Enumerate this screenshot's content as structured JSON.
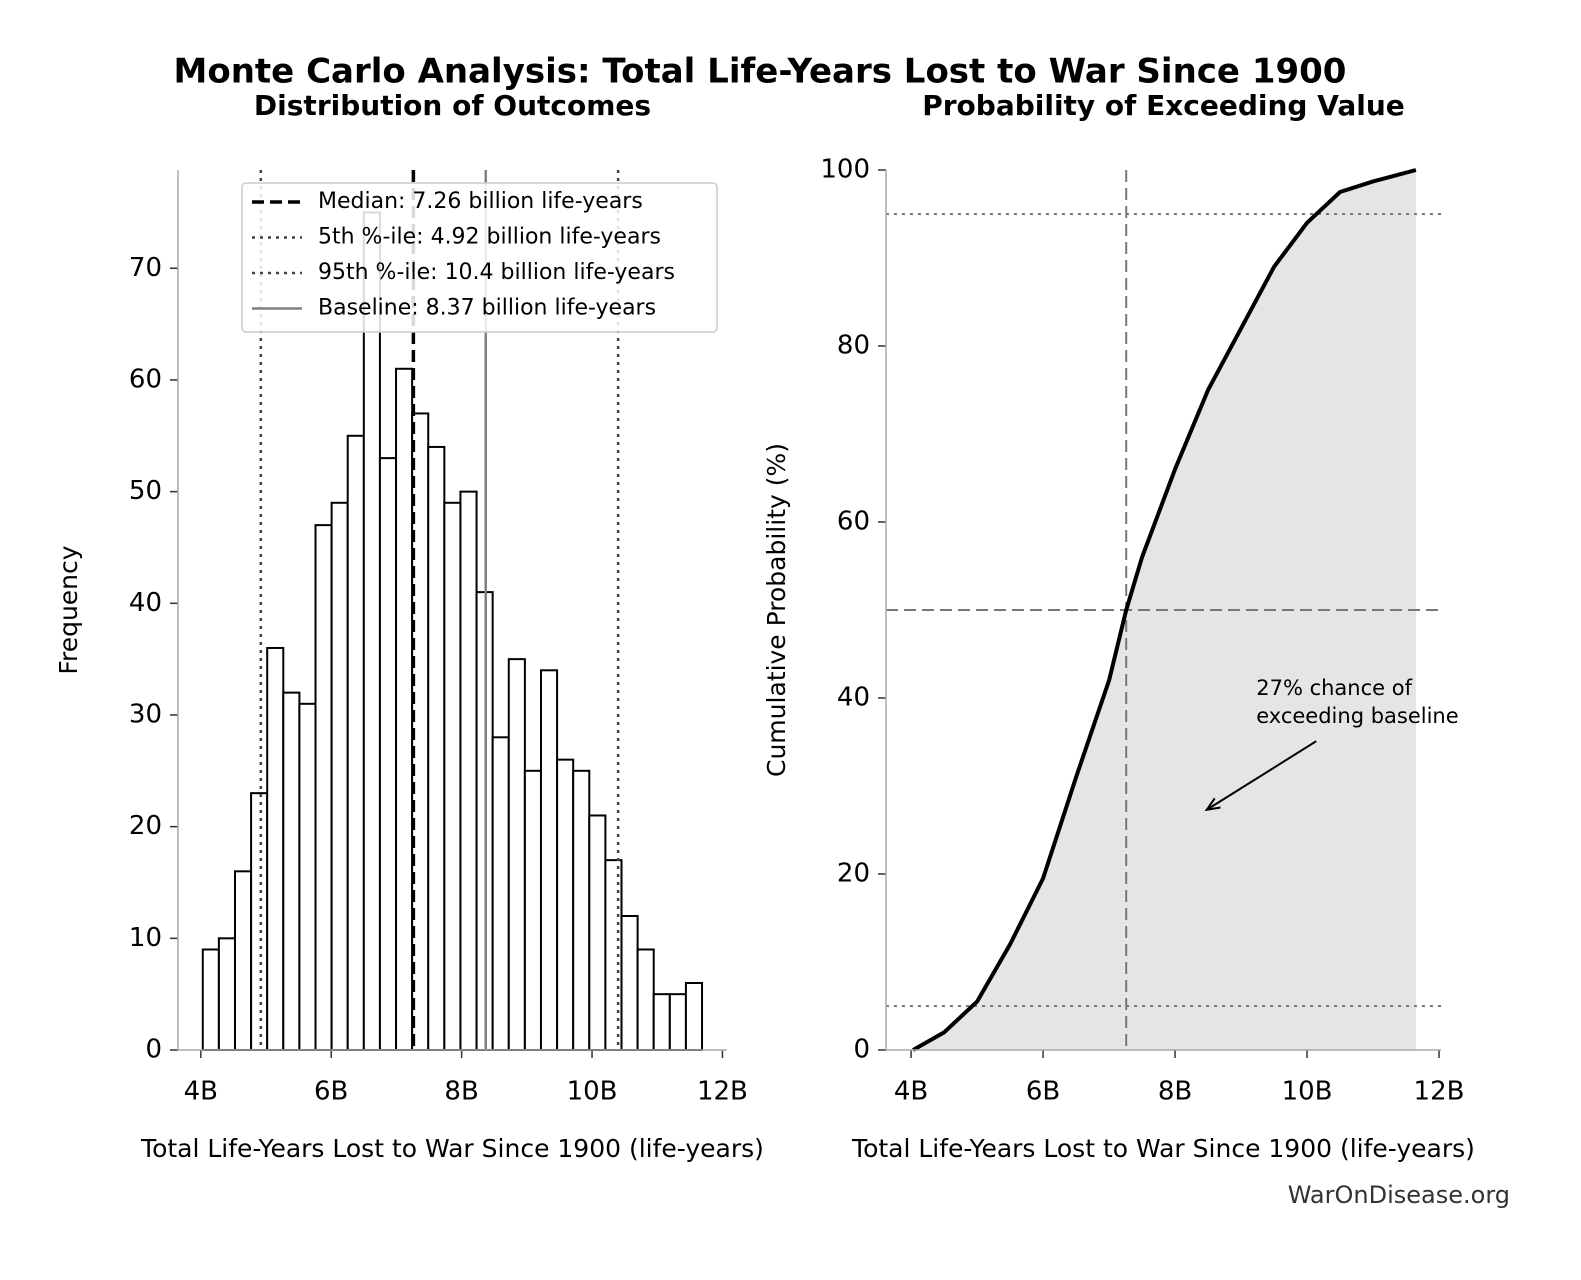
{
  "title": "Monte Carlo Analysis: Total Life-Years Lost to War Since 1900",
  "footer": "WarOnDisease.org",
  "chart_data": [
    {
      "type": "histogram",
      "title": "Distribution of Outcomes",
      "xlabel": "Total Life-Years Lost to War Since 1900 (life-years)",
      "ylabel": "Frequency",
      "bins": [
        4030000000.0,
        4277000000.0,
        4524000000.0,
        4771000000.0,
        5018000000.0,
        5265000000.0,
        5512000000.0,
        5759000000.0,
        6006000000.0,
        6253000000.0,
        6500000000.0,
        6747000000.0,
        6994000000.0,
        7241000000.0,
        7488000000.0,
        7735000000.0,
        7982000000.0,
        8229000000.0,
        8476000000.0,
        8723000000.0,
        8970000000.0,
        9217000000.0,
        9464000000.0,
        9711000000.0,
        9958000000.0,
        10205000000.0,
        10452000000.0,
        10699000000.0,
        10946000000.0,
        11193000000.0,
        11440000000.0,
        11687000000.0
      ],
      "counts": [
        9,
        10,
        16,
        23,
        36,
        32,
        31,
        47,
        49,
        55,
        75,
        53,
        61,
        57,
        54,
        49,
        50,
        41,
        28,
        35,
        25,
        34,
        26,
        25,
        21,
        17,
        12,
        9,
        5,
        5,
        6
      ],
      "color": "#ffffff",
      "edgecolor": "#000000",
      "xlim": [
        3650000000.0,
        12070000000.0
      ],
      "ylim": [
        0,
        78.8
      ],
      "xticks": [
        {
          "value": 4000000000.0,
          "label": "4B"
        },
        {
          "value": 6000000000.0,
          "label": "6B"
        },
        {
          "value": 8000000000.0,
          "label": "8B"
        },
        {
          "value": 10000000000.0,
          "label": "10B"
        },
        {
          "value": 12000000000.0,
          "label": "12B"
        }
      ],
      "yticks": [
        0,
        10,
        20,
        30,
        40,
        50,
        60,
        70
      ],
      "legend": "upper center",
      "reference_lines": [
        {
          "label": "Median: 7.26 billion life-years",
          "value": 7260000000.0,
          "style": "dashed",
          "color": "#000000"
        },
        {
          "label": "5th %-ile: 4.92 billion life-years",
          "value": 4920000000.0,
          "style": "dotted",
          "color": "#444444"
        },
        {
          "label": "95th %-ile: 10.4 billion life-years",
          "value": 10400000000.0,
          "style": "dotted",
          "color": "#444444"
        },
        {
          "label": "Baseline: 8.37 billion life-years",
          "value": 8370000000.0,
          "style": "solid",
          "color": "#808080"
        }
      ]
    },
    {
      "type": "line",
      "title": "Probability of Exceeding Value",
      "xlabel": "Total Life-Years Lost to War Since 1900 (life-years)",
      "ylabel": "Cumulative Probability (%)",
      "x": [
        4030000000.0,
        4500000000.0,
        5000000000.0,
        5500000000.0,
        6000000000.0,
        6500000000.0,
        7000000000.0,
        7260000000.0,
        7500000000.0,
        8000000000.0,
        8500000000.0,
        9000000000.0,
        9500000000.0,
        10000000000.0,
        10500000000.0,
        11000000000.0,
        11650000000.0
      ],
      "values": [
        0,
        2,
        5.5,
        12,
        19.5,
        31,
        42,
        50,
        56,
        66,
        75,
        82,
        89,
        94,
        97.5,
        98.7,
        100
      ],
      "color": "#000000",
      "fill_color": "#e5e5e5",
      "xlim": [
        3620000000.0,
        12030000000.0
      ],
      "ylim": [
        0,
        100
      ],
      "xticks": [
        {
          "value": 4000000000.0,
          "label": "4B"
        },
        {
          "value": 6000000000.0,
          "label": "6B"
        },
        {
          "value": 8000000000.0,
          "label": "8B"
        },
        {
          "value": 10000000000.0,
          "label": "10B"
        },
        {
          "value": 12000000000.0,
          "label": "12B"
        }
      ],
      "yticks": [
        0,
        20,
        40,
        60,
        80,
        100
      ],
      "hlines": [
        {
          "value": 5,
          "style": "dotted"
        },
        {
          "value": 50,
          "style": "dashed"
        },
        {
          "value": 95,
          "style": "dotted"
        }
      ],
      "vlines": [
        {
          "value": 7260000000.0,
          "style": "dashed"
        }
      ],
      "annotation": {
        "lines": [
          "27% chance of",
          "exceeding baseline"
        ],
        "xy": [
          8480000000.0,
          27.3
        ],
        "xytext": [
          9230000000.0,
          41
        ]
      }
    }
  ]
}
